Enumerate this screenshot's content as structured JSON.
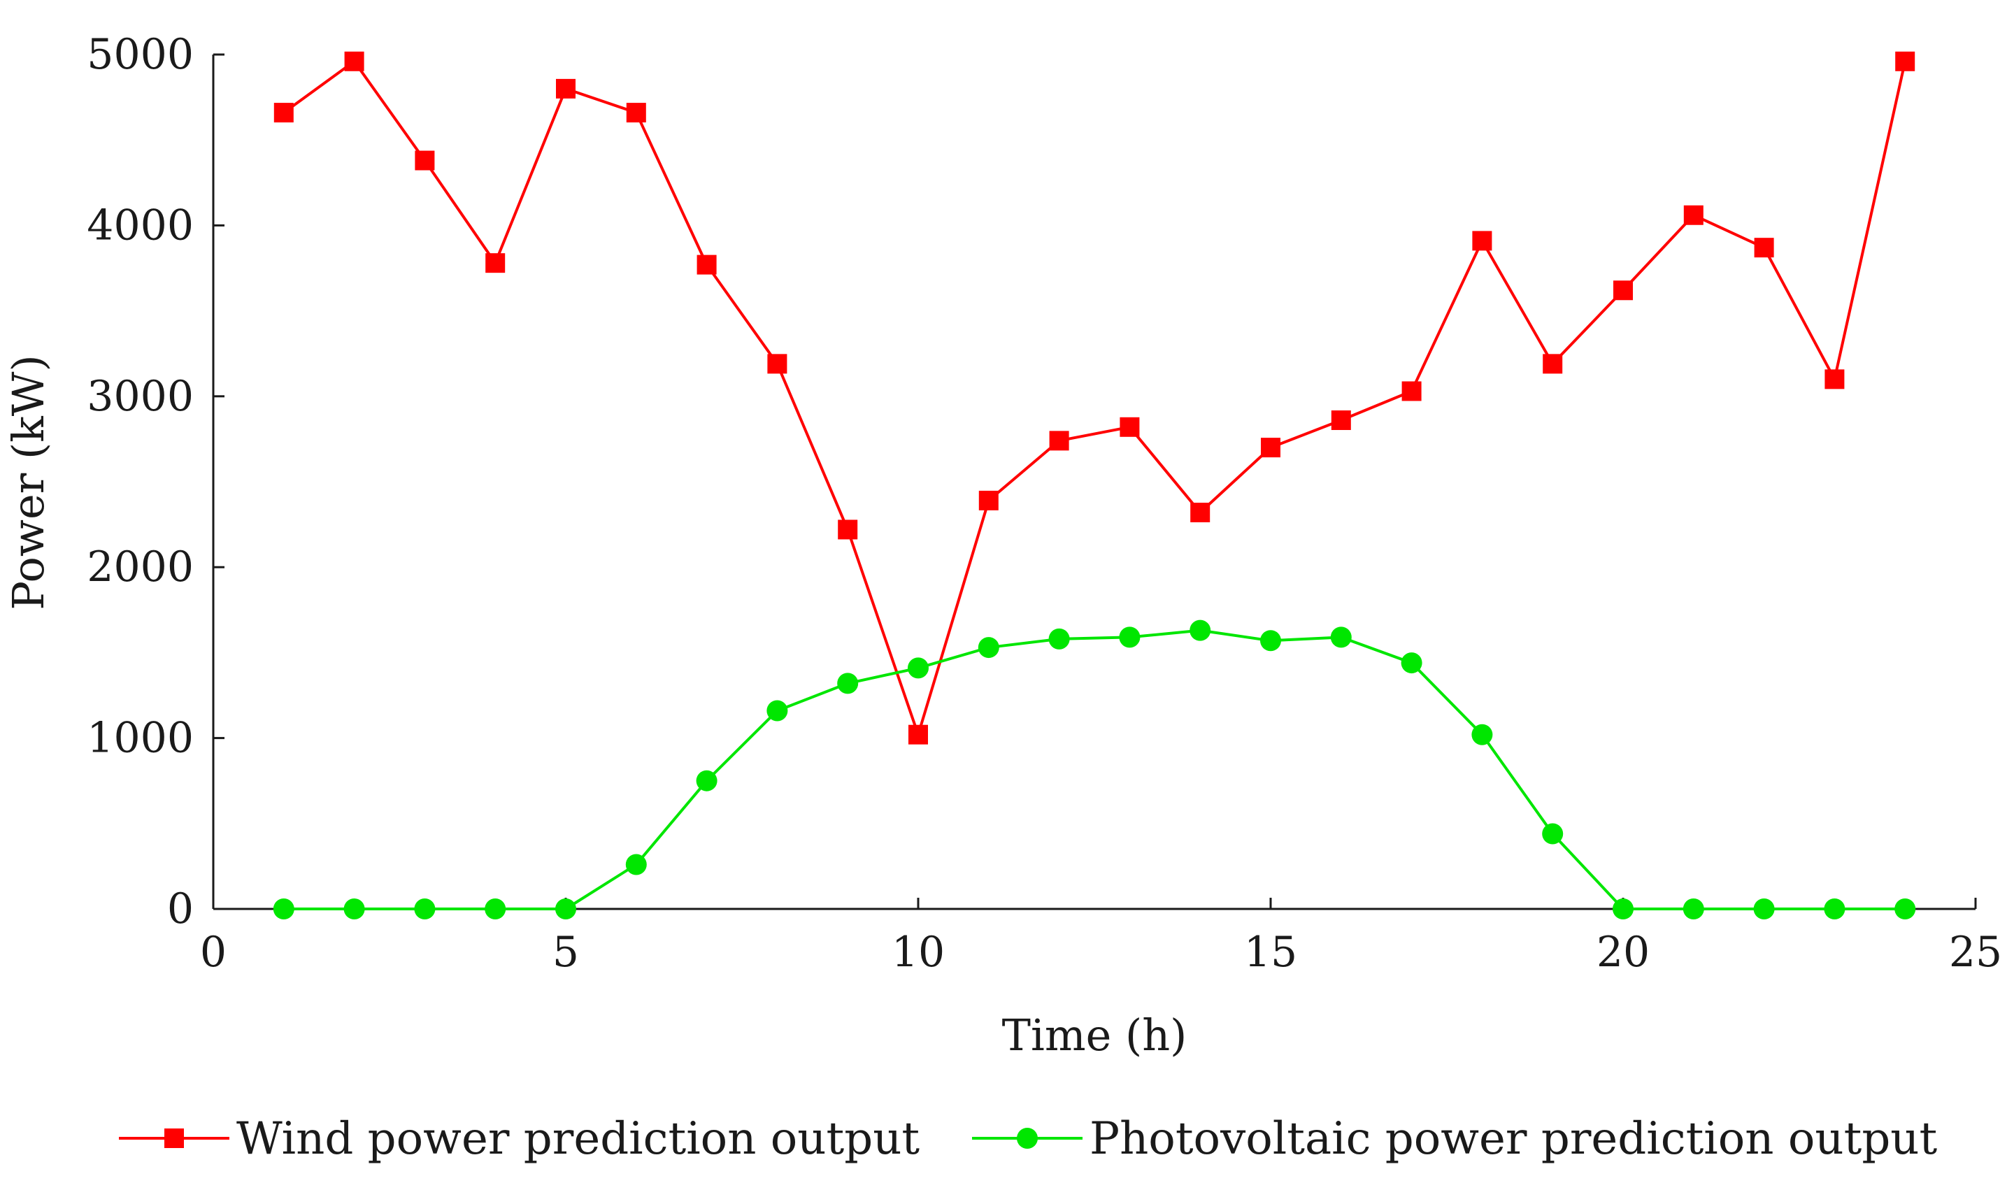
{
  "chart_data": {
    "type": "line",
    "title": "",
    "xlabel": "Time (h)",
    "ylabel": "Power (kW)",
    "xlim": [
      0,
      25
    ],
    "ylim": [
      0,
      5000
    ],
    "xticks": [
      0,
      5,
      10,
      15,
      20,
      25
    ],
    "yticks": [
      0,
      1000,
      2000,
      3000,
      4000,
      5000
    ],
    "grid": false,
    "legend_position": "bottom",
    "x": [
      1,
      2,
      3,
      4,
      5,
      6,
      7,
      8,
      9,
      10,
      11,
      12,
      13,
      14,
      15,
      16,
      17,
      18,
      19,
      20,
      21,
      22,
      23,
      24
    ],
    "series": [
      {
        "name": "Wind power prediction output",
        "color": "#ff0000",
        "marker": "square",
        "values": [
          4660,
          4960,
          4380,
          3780,
          4800,
          4660,
          3770,
          3190,
          2220,
          1020,
          2390,
          2740,
          2820,
          2320,
          2700,
          2860,
          3030,
          3910,
          3190,
          3620,
          4060,
          3870,
          3100,
          4960
        ]
      },
      {
        "name": "Photovoltaic power prediction output",
        "color": "#00e600",
        "marker": "circle",
        "values": [
          0,
          0,
          0,
          0,
          0,
          260,
          750,
          1160,
          1320,
          1410,
          1530,
          1580,
          1590,
          1630,
          1570,
          1590,
          1440,
          1020,
          440,
          0,
          0,
          0,
          0,
          0
        ]
      }
    ]
  }
}
